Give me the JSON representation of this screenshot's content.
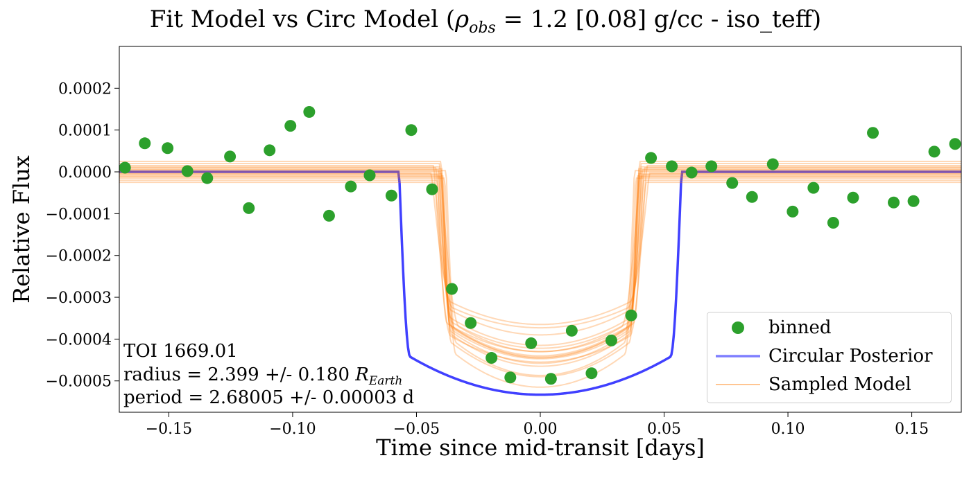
{
  "chart_data": {
    "type": "scatter",
    "title": {
      "prefix": "Fit Model vs Circ Model (",
      "rho": "ρ",
      "rho_sub": "obs",
      "suffix": " = 1.2 [0.08] g/cc - iso_teff)"
    },
    "xlabel": "Time since mid-transit [days]",
    "ylabel": "Relative Flux",
    "xlim": [
      -0.17,
      0.17
    ],
    "ylim": [
      -0.000575,
      0.0003
    ],
    "xticks": [
      -0.15,
      -0.1,
      -0.05,
      0.0,
      0.05,
      0.1,
      0.15
    ],
    "xtick_labels": [
      "−0.15",
      "−0.10",
      "−0.05",
      "0.00",
      "0.05",
      "0.10",
      "0.15"
    ],
    "yticks": [
      0.0002,
      0.0001,
      0.0,
      -0.0001,
      -0.0002,
      -0.0003,
      -0.0004,
      -0.0005
    ],
    "ytick_labels": [
      "0.0002",
      "0.0001",
      "0.0000",
      "−0.0001",
      "−0.0002",
      "−0.0003",
      "−0.0004",
      "−0.0005"
    ],
    "grid": false,
    "legend_position": "lower right",
    "series": [
      {
        "name": "binned",
        "kind": "scatter",
        "color": "#2ca02c",
        "x": [
          -0.1677,
          -0.1597,
          -0.1505,
          -0.1425,
          -0.1345,
          -0.1253,
          -0.1177,
          -0.1093,
          -0.1009,
          -0.0933,
          -0.0853,
          -0.0765,
          -0.0689,
          -0.0601,
          -0.0521,
          -0.0437,
          -0.0357,
          -0.0281,
          -0.0197,
          -0.0121,
          -0.0037,
          0.0043,
          0.0127,
          0.0207,
          0.0287,
          0.0367,
          0.0447,
          0.0531,
          0.0611,
          0.0691,
          0.0775,
          0.0855,
          0.0939,
          0.1019,
          0.1103,
          0.1183,
          0.1263,
          0.1343,
          0.1427,
          0.1507,
          0.1591,
          0.1675
        ],
        "y": [
          1e-05,
          6.83e-05,
          5.67e-05,
          1.7e-06,
          -1.5e-05,
          3.67e-05,
          -8.67e-05,
          5.17e-05,
          0.00011,
          0.0001433,
          -0.000105,
          -3.5e-05,
          -8.3e-06,
          -5.67e-05,
          0.0001,
          -4.17e-05,
          -0.00028,
          -0.0003617,
          -0.000445,
          -0.0004917,
          -0.00041,
          -0.000495,
          -0.00038,
          -0.0004817,
          -0.0004033,
          -0.0003433,
          3.33e-05,
          1.33e-05,
          -1.7e-06,
          1.33e-05,
          -2.67e-05,
          -6e-05,
          1.83e-05,
          -9.5e-05,
          -3.83e-05,
          -0.0001217,
          -6.17e-05,
          9.33e-05,
          -7.33e-05,
          -7e-05,
          4.83e-05,
          6.67e-05
        ]
      },
      {
        "name": "Circular Posterior",
        "kind": "line",
        "color": "#0000ff",
        "alpha": 0.75,
        "depth": 0.000533,
        "half_duration": 0.057,
        "ingress": 0.0045
      },
      {
        "name": "Sampled Model",
        "kind": "lines",
        "color": "#ff7f0e",
        "alpha": 0.3,
        "samples": [
          {
            "offset": 0.0,
            "depth": 0.00044,
            "half_duration": 0.04,
            "ingress": 0.004
          },
          {
            "offset": 5e-06,
            "depth": 0.00042,
            "half_duration": 0.041,
            "ingress": 0.005
          },
          {
            "offset": -5e-06,
            "depth": 0.00046,
            "half_duration": 0.0395,
            "ingress": 0.0035
          },
          {
            "offset": 1e-05,
            "depth": 0.0004,
            "half_duration": 0.042,
            "ingress": 0.006
          },
          {
            "offset": -1e-05,
            "depth": 0.00048,
            "half_duration": 0.039,
            "ingress": 0.003
          },
          {
            "offset": 1.5e-05,
            "depth": 0.00038,
            "half_duration": 0.043,
            "ingress": 0.007
          },
          {
            "offset": -1.5e-05,
            "depth": 0.0005,
            "half_duration": 0.0385,
            "ingress": 0.0045
          },
          {
            "offset": 2e-05,
            "depth": 0.00045,
            "half_duration": 0.0405,
            "ingress": 0.008
          },
          {
            "offset": -2e-05,
            "depth": 0.00041,
            "half_duration": 0.0415,
            "ingress": 0.004
          },
          {
            "offset": 2.5e-05,
            "depth": 0.00047,
            "half_duration": 0.04,
            "ingress": 0.0055
          },
          {
            "offset": -2.5e-05,
            "depth": 0.00043,
            "half_duration": 0.0425,
            "ingress": 0.0065
          },
          {
            "offset": 3e-06,
            "depth": 0.00049,
            "half_duration": 0.038,
            "ingress": 0.004
          },
          {
            "offset": -3e-06,
            "depth": 0.00037,
            "half_duration": 0.044,
            "ingress": 0.009
          },
          {
            "offset": 1.2e-05,
            "depth": 0.000455,
            "half_duration": 0.0408,
            "ingress": 0.0048
          },
          {
            "offset": -1.2e-05,
            "depth": 0.000435,
            "half_duration": 0.0402,
            "ingress": 0.0052
          },
          {
            "offset": 7e-06,
            "depth": 0.000465,
            "half_duration": 0.0398,
            "ingress": 0.0038
          },
          {
            "offset": -7e-06,
            "depth": 0.000415,
            "half_duration": 0.0412,
            "ingress": 0.0058
          }
        ]
      }
    ],
    "annotation": {
      "line1": "TOI 1669.01",
      "line2_prefix": "radius = 2.399 +/- 0.180 ",
      "line2_r": "R",
      "line2_sub": "Earth",
      "line3": "period = 2.68005 +/- 0.00003 d"
    }
  }
}
